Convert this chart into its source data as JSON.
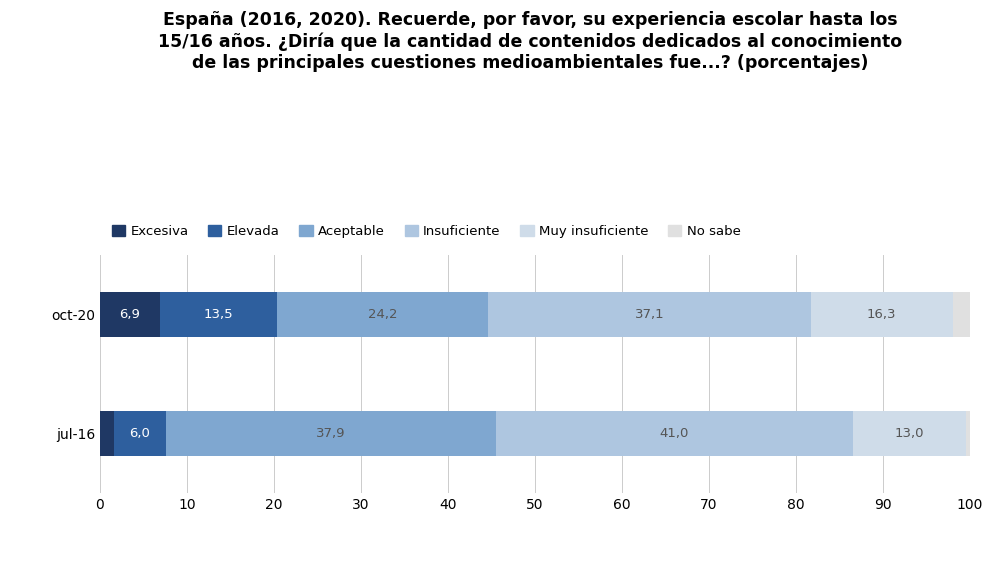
{
  "title_lines": [
    "España (2016, 2020). Recuerde, por favor, su experiencia escolar hasta los",
    "15/16 años. ¿Diría que la cantidad de contenidos dedicados al conocimiento",
    "de las principales cuestiones medioambientales fue...? (porcentajes)"
  ],
  "categories": [
    "oct-20",
    "jul-16"
  ],
  "segments": [
    "Excesiva",
    "Elevada",
    "Aceptable",
    "Insuficiente",
    "Muy insuficiente",
    "No sabe"
  ],
  "colors": [
    "#1f3864",
    "#2e5f9e",
    "#7fa7d0",
    "#aec6e0",
    "#cfdce9",
    "#e0e0e0"
  ],
  "data": {
    "oct-20": [
      6.9,
      13.5,
      24.2,
      37.1,
      16.3,
      2.0
    ],
    "jul-16": [
      1.6,
      6.0,
      37.9,
      41.0,
      13.0,
      0.5
    ]
  },
  "xlim": [
    0,
    100
  ],
  "xticks": [
    0,
    10,
    20,
    30,
    40,
    50,
    60,
    70,
    80,
    90,
    100
  ],
  "background_color": "#ffffff",
  "bar_height": 0.38,
  "label_color_light": "#ffffff",
  "label_color_dark": "#555555",
  "fontsize_labels": 9.5,
  "fontsize_title": 12.5,
  "fontsize_legend": 9.5,
  "fontsize_ticks": 10
}
